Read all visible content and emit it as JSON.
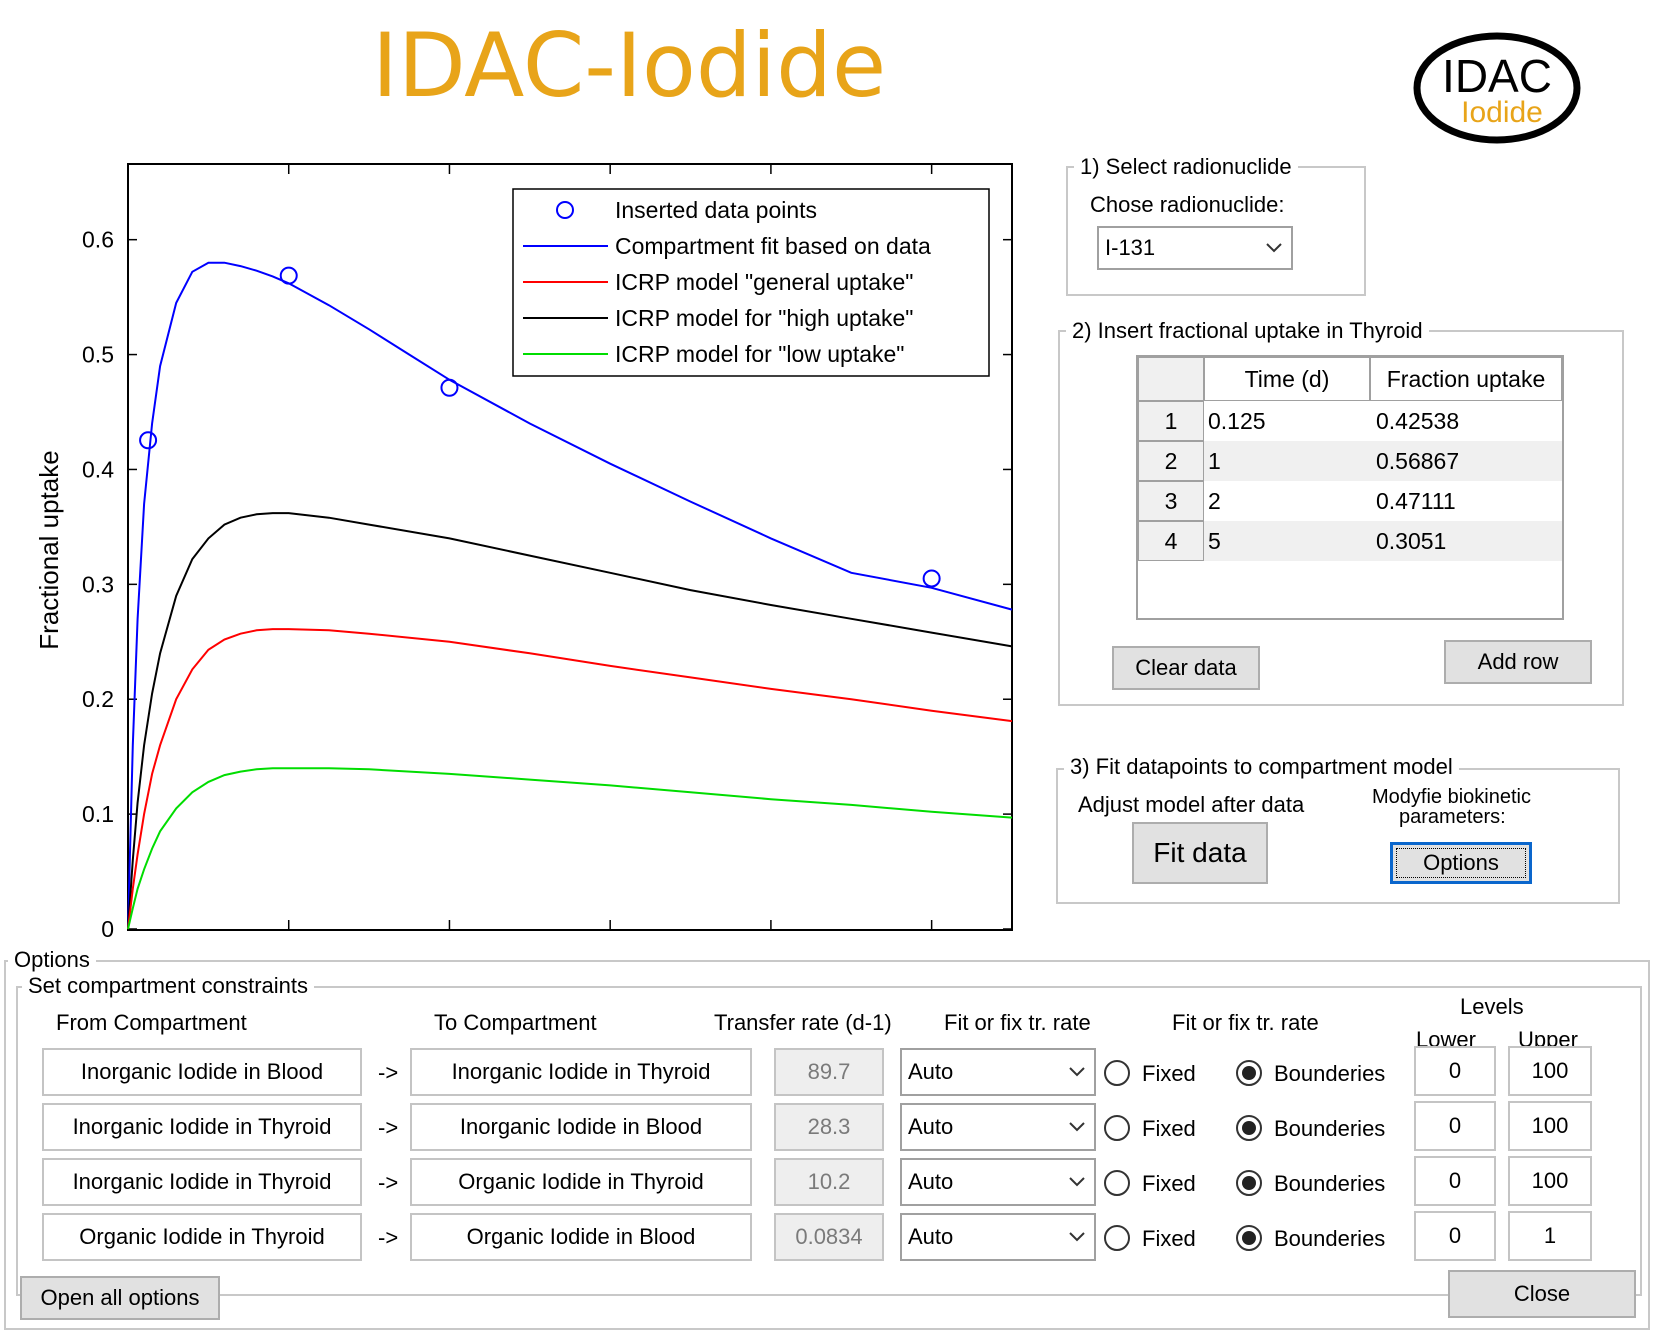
{
  "app": {
    "title": "IDAC-Iodide",
    "logo_text_top": "IDAC",
    "logo_text_bottom": "Iodide",
    "accent_color": "#e8a419"
  },
  "chart_data": {
    "type": "line",
    "ylabel": "Fractional uptake",
    "xlabel": "",
    "ylim": [
      0,
      0.6
    ],
    "xlim": [
      0,
      5.5
    ],
    "y_ticks": [
      "0",
      "0.1",
      "0.2",
      "0.3",
      "0.4",
      "0.5",
      "0.6"
    ],
    "legend_position": "top-right",
    "legend": [
      {
        "label": "Inserted data points",
        "color": "#0000ff",
        "kind": "marker"
      },
      {
        "label": "Compartment fit based on data",
        "color": "#0000ff",
        "kind": "line"
      },
      {
        "label": "ICRP model \"general uptake\"",
        "color": "#ff0000",
        "kind": "line"
      },
      {
        "label": "ICRP model for \"high uptake\"",
        "color": "#000000",
        "kind": "line"
      },
      {
        "label": "ICRP model for \"low uptake\"",
        "color": "#00dd00",
        "kind": "line"
      }
    ],
    "points": {
      "x": [
        0.125,
        1,
        2,
        5
      ],
      "y": [
        0.42538,
        0.56867,
        0.47111,
        0.3051
      ]
    },
    "series": [
      {
        "color": "#0000ff",
        "x": [
          0,
          0.03,
          0.06,
          0.1,
          0.15,
          0.2,
          0.3,
          0.4,
          0.5,
          0.6,
          0.7,
          0.8,
          0.9,
          1.0,
          1.25,
          1.5,
          1.75,
          2.0,
          2.5,
          3.0,
          3.5,
          4.0,
          4.5,
          5.0,
          5.5
        ],
        "y": [
          0,
          0.16,
          0.27,
          0.37,
          0.44,
          0.49,
          0.545,
          0.572,
          0.58,
          0.58,
          0.577,
          0.573,
          0.568,
          0.562,
          0.543,
          0.522,
          0.5,
          0.478,
          0.44,
          0.405,
          0.372,
          0.34,
          0.31,
          0.297,
          0.278
        ]
      },
      {
        "color": "#000000",
        "x": [
          0,
          0.03,
          0.06,
          0.1,
          0.15,
          0.2,
          0.3,
          0.4,
          0.5,
          0.6,
          0.7,
          0.8,
          0.9,
          1.0,
          1.25,
          1.5,
          2.0,
          2.5,
          3.0,
          3.5,
          4.0,
          4.5,
          5.0,
          5.5
        ],
        "y": [
          0,
          0.06,
          0.11,
          0.16,
          0.205,
          0.24,
          0.29,
          0.322,
          0.34,
          0.352,
          0.358,
          0.361,
          0.362,
          0.362,
          0.358,
          0.352,
          0.34,
          0.325,
          0.31,
          0.295,
          0.282,
          0.27,
          0.258,
          0.246
        ]
      },
      {
        "color": "#ff0000",
        "x": [
          0,
          0.03,
          0.06,
          0.1,
          0.15,
          0.2,
          0.3,
          0.4,
          0.5,
          0.6,
          0.7,
          0.8,
          0.9,
          1.0,
          1.25,
          1.5,
          2.0,
          2.5,
          3.0,
          3.5,
          4.0,
          4.5,
          5.0,
          5.5
        ],
        "y": [
          0,
          0.035,
          0.065,
          0.1,
          0.135,
          0.16,
          0.2,
          0.226,
          0.243,
          0.252,
          0.257,
          0.26,
          0.261,
          0.261,
          0.26,
          0.257,
          0.25,
          0.24,
          0.229,
          0.219,
          0.209,
          0.2,
          0.19,
          0.181
        ]
      },
      {
        "color": "#00dd00",
        "x": [
          0,
          0.03,
          0.06,
          0.1,
          0.15,
          0.2,
          0.3,
          0.4,
          0.5,
          0.6,
          0.7,
          0.8,
          0.9,
          1.0,
          1.25,
          1.5,
          2.0,
          2.5,
          3.0,
          3.5,
          4.0,
          4.5,
          5.0,
          5.5
        ],
        "y": [
          0,
          0.018,
          0.035,
          0.052,
          0.07,
          0.085,
          0.105,
          0.119,
          0.128,
          0.134,
          0.137,
          0.139,
          0.14,
          0.14,
          0.14,
          0.139,
          0.135,
          0.13,
          0.125,
          0.119,
          0.113,
          0.108,
          0.102,
          0.097
        ]
      }
    ]
  },
  "panel1": {
    "title": "1) Select radionuclide",
    "label": "Chose radionuclide:",
    "selected": "I-131"
  },
  "panel2": {
    "title": "2) Insert fractional uptake in Thyroid",
    "col_time": "Time (d)",
    "col_fraction": "Fraction uptake",
    "rows": [
      {
        "n": "1",
        "time": "0.125",
        "fraction": "0.42538"
      },
      {
        "n": "2",
        "time": "1",
        "fraction": "0.56867"
      },
      {
        "n": "3",
        "time": "2",
        "fraction": "0.47111"
      },
      {
        "n": "4",
        "time": "5",
        "fraction": "0.3051"
      }
    ],
    "clear_label": "Clear data",
    "add_row_label": "Add row"
  },
  "panel3": {
    "title": "3) Fit datapoints to compartment model",
    "adjust_label": "Adjust model after data",
    "modify_label_1": "Modyfie biokinetic",
    "modify_label_2": "parameters:",
    "fit_label": "Fit data",
    "options_label": "Options"
  },
  "options": {
    "title": "Options",
    "sub_title": "Set compartment constraints",
    "hdr_from": "From Compartment",
    "hdr_to": "To Compartment",
    "hdr_rate": "Transfer rate (d-1)",
    "hdr_fitfix1": "Fit or fix tr. rate",
    "hdr_fitfix2": "Fit or fix tr. rate",
    "hdr_levels": "Levels",
    "hdr_lower": "Lower",
    "hdr_upper": "Upper",
    "rows": [
      {
        "from": "Inorganic Iodide in Blood",
        "arrow": "->",
        "to": "Inorganic Iodide in Thyroid",
        "rate": "89.7",
        "mode": "Auto",
        "fixed": "Fixed",
        "bounds": "Bounderies",
        "lower": "0",
        "upper": "100"
      },
      {
        "from": "Inorganic Iodide in Thyroid",
        "arrow": "->",
        "to": "Inorganic Iodide in Blood",
        "rate": "28.3",
        "mode": "Auto",
        "fixed": "Fixed",
        "bounds": "Bounderies",
        "lower": "0",
        "upper": "100"
      },
      {
        "from": "Inorganic Iodide in Thyroid",
        "arrow": "->",
        "to": "Organic Iodide in Thyroid",
        "rate": "10.2",
        "mode": "Auto",
        "fixed": "Fixed",
        "bounds": "Bounderies",
        "lower": "0",
        "upper": "100"
      },
      {
        "from": "Organic Iodide in Thyroid",
        "arrow": "->",
        "to": "Organic Iodide in Blood",
        "rate": "0.0834",
        "mode": "Auto",
        "fixed": "Fixed",
        "bounds": "Bounderies",
        "lower": "0",
        "upper": "1"
      }
    ],
    "open_all_label": "Open all options",
    "close_label": "Close"
  }
}
